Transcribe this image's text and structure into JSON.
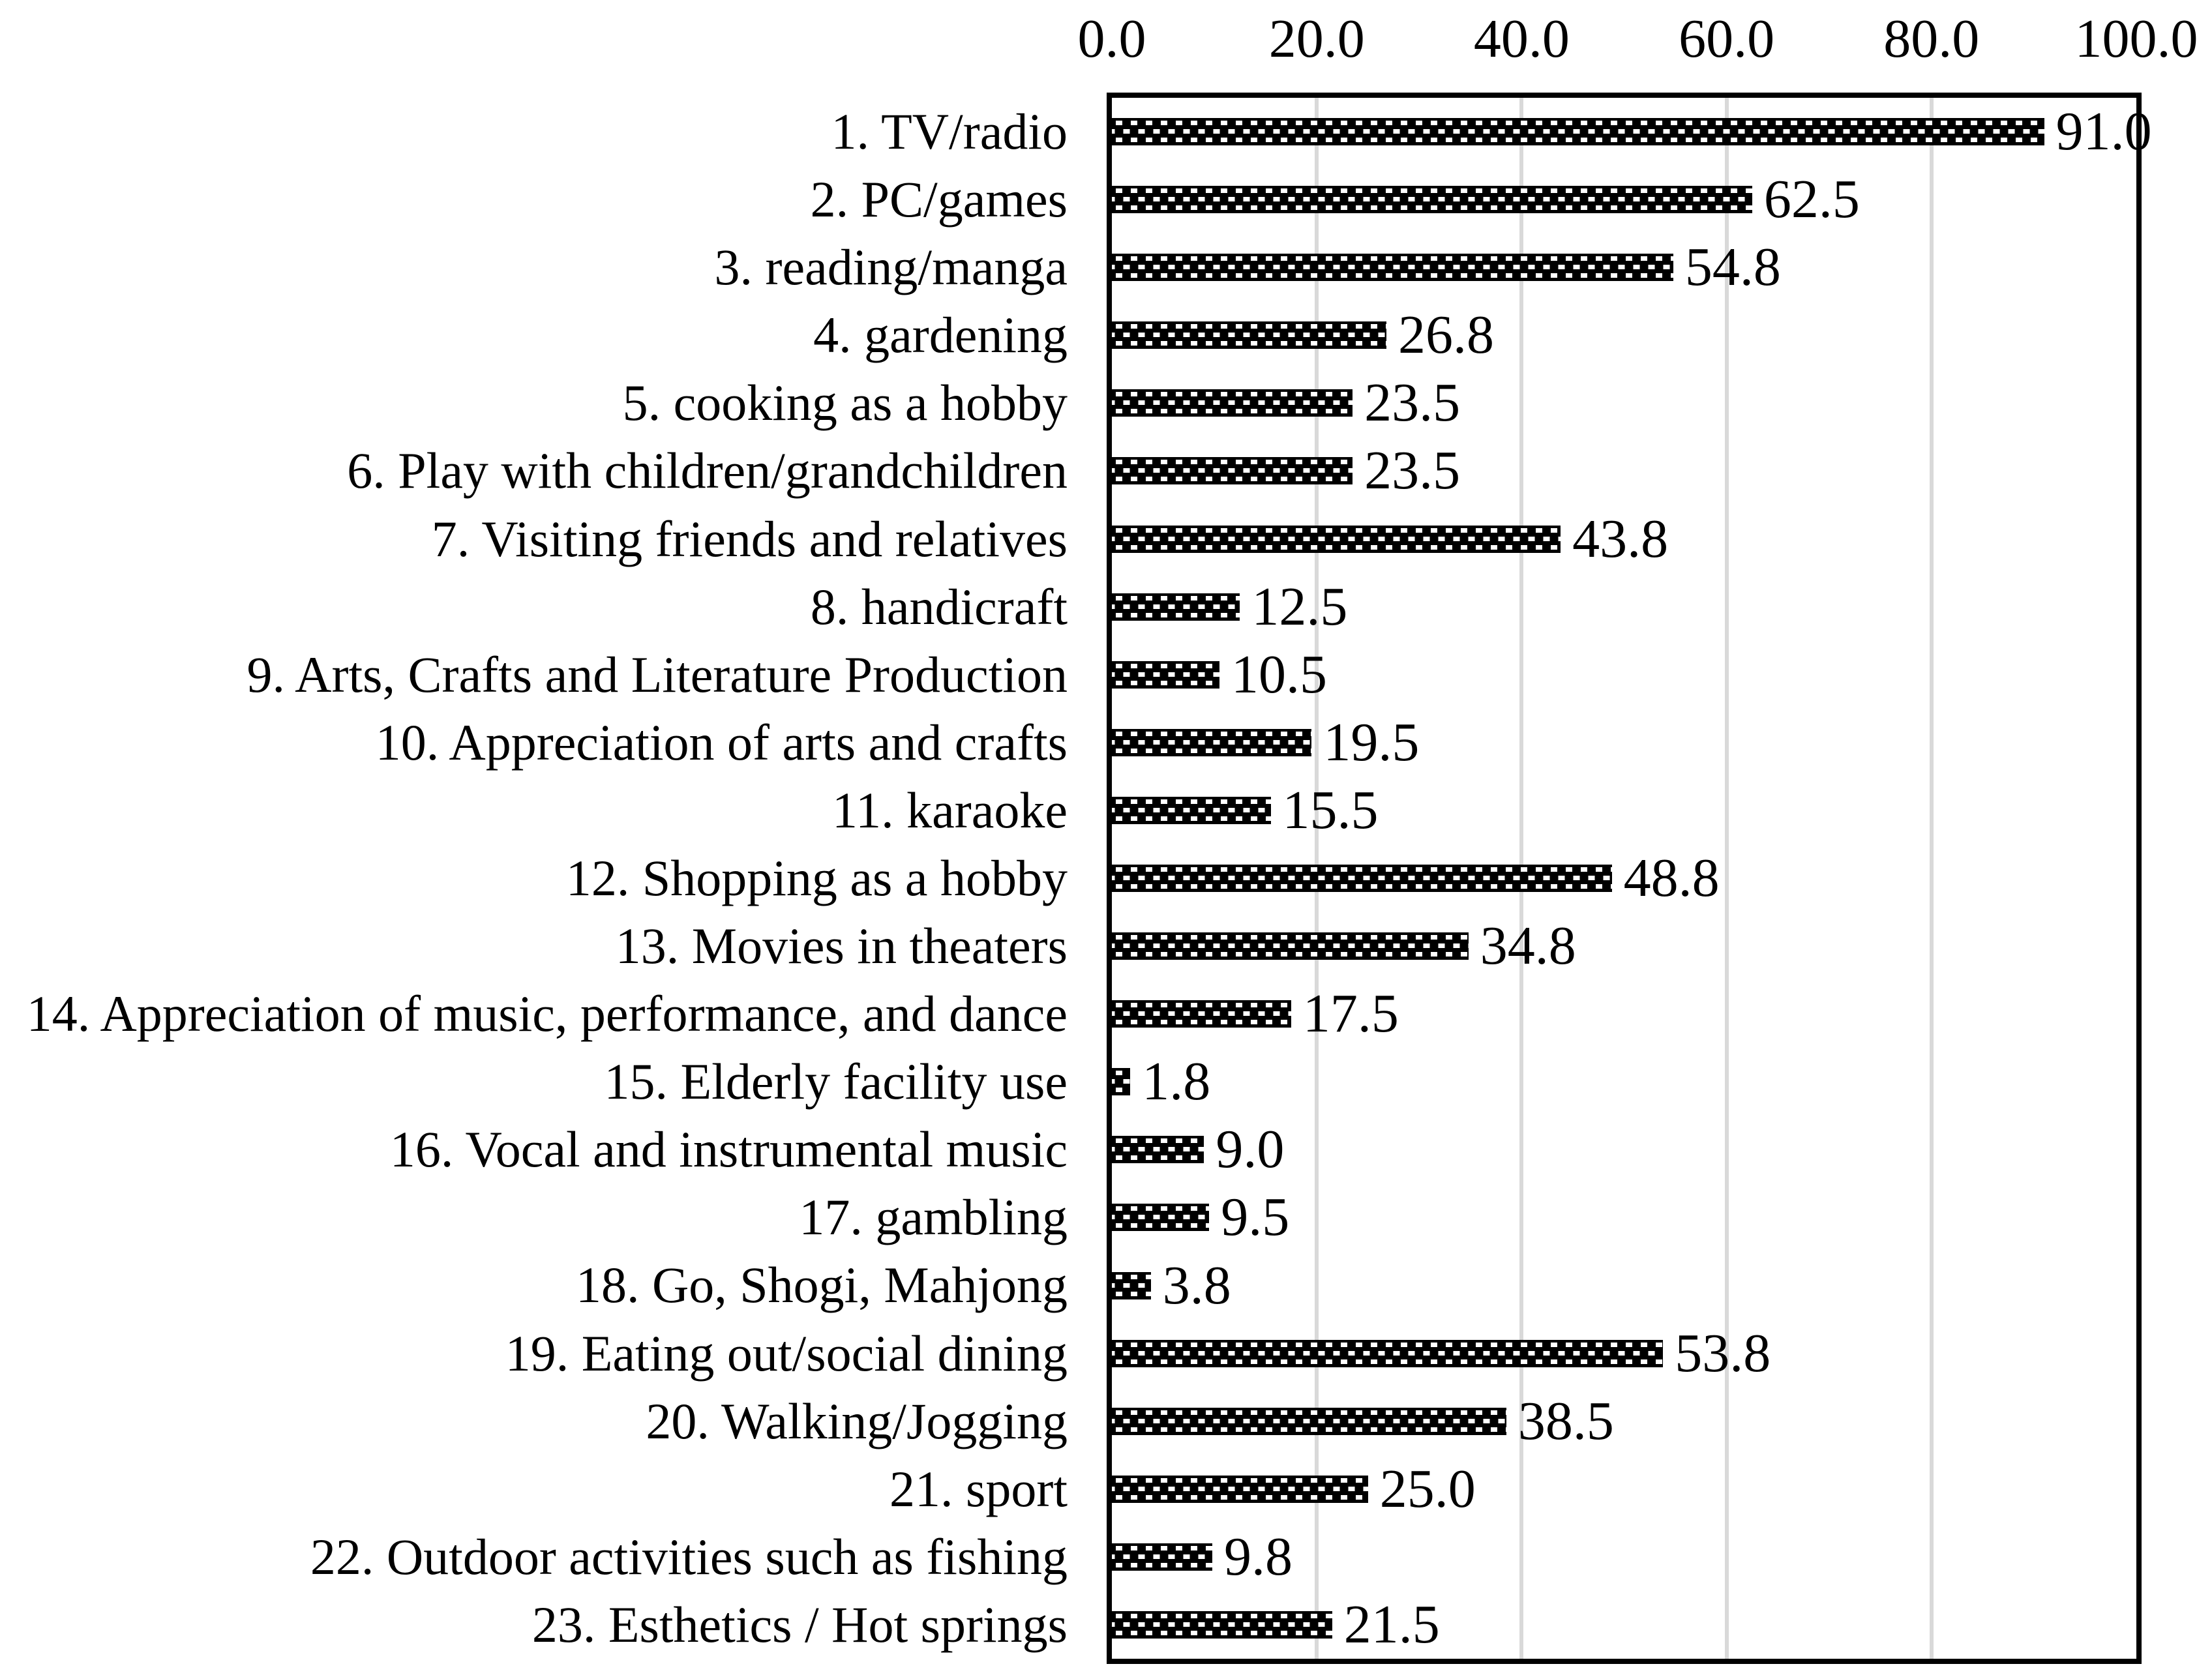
{
  "chart_data": {
    "type": "bar",
    "orientation": "horizontal",
    "title": "",
    "xlabel": "",
    "ylabel": "",
    "xlim": [
      0,
      100
    ],
    "x_ticks": [
      "0.0",
      "20.0",
      "40.0",
      "60.0",
      "80.0",
      "100.0"
    ],
    "x_tick_values": [
      0,
      20,
      40,
      60,
      80,
      100
    ],
    "grid": "vertical-gridlines-on",
    "legend": "none",
    "categories": [
      "1. TV/radio",
      "2. PC/games",
      "3. reading/manga",
      "4. gardening",
      "5. cooking as a hobby",
      "6. Play with children/grandchildren",
      "7. Visiting friends and relatives",
      "8. handicraft",
      "9. Arts, Crafts and Literature Production",
      "10. Appreciation of arts and crafts",
      "11. karaoke",
      "12. Shopping as a hobby",
      "13. Movies in theaters",
      "14. Appreciation of music, performance, and dance",
      "15. Elderly facility use",
      "16. Vocal and instrumental music",
      "17. gambling",
      "18. Go, Shogi, Mahjong",
      "19. Eating out/social dining",
      "20. Walking/Jogging",
      "21. sport",
      "22. Outdoor activities such as fishing",
      "23. Esthetics / Hot springs"
    ],
    "values": [
      91.0,
      62.5,
      54.8,
      26.8,
      23.5,
      23.5,
      43.8,
      12.5,
      10.5,
      19.5,
      15.5,
      48.8,
      34.8,
      17.5,
      1.8,
      9.0,
      9.5,
      3.8,
      53.8,
      38.5,
      25.0,
      9.8,
      21.5
    ],
    "value_labels": [
      "91.0",
      "62.5",
      "54.8",
      "26.8",
      "23.5",
      "23.5",
      "43.8",
      "12.5",
      "10.5",
      "19.5",
      "15.5",
      "48.8",
      "34.8",
      "17.5",
      "1.8",
      "9.0",
      "9.5",
      "3.8",
      "53.8",
      "38.5",
      "25.0",
      "9.8",
      "21.5"
    ],
    "colors": {
      "bar_fill": "#000000",
      "bar_dot": "#ffffff",
      "plot_border": "#000000",
      "gridline": "#d9d9d9",
      "text": "#000000",
      "background": "#ffffff"
    }
  }
}
